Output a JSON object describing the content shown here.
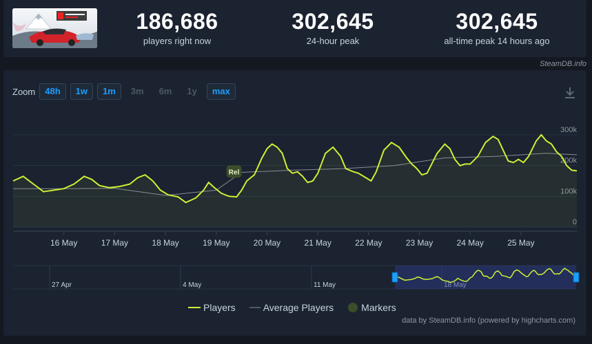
{
  "stats": {
    "current": {
      "value": "186,686",
      "label": "players right now"
    },
    "peak24": {
      "value": "302,645",
      "label": "24-hour peak"
    },
    "alltime": {
      "value": "302,645",
      "label": "all-time peak 14 hours ago"
    }
  },
  "credit": "SteamDB.info",
  "zoom": {
    "label": "Zoom",
    "buttons": [
      {
        "label": "48h",
        "active": true
      },
      {
        "label": "1w",
        "active": true
      },
      {
        "label": "1m",
        "active": true
      },
      {
        "label": "3m",
        "active": false
      },
      {
        "label": "6m",
        "active": false
      },
      {
        "label": "1y",
        "active": false
      },
      {
        "label": "max",
        "active": true
      }
    ]
  },
  "legend": {
    "players": "Players",
    "average": "Average Players",
    "markers": "Markers"
  },
  "footer": "data by SteamDB.info (powered by highcharts.com)",
  "colors": {
    "players": "#d0f034",
    "average": "#8a8f94",
    "markers": "#3b4d2a",
    "accent": "#1a9fff"
  },
  "chart_data": {
    "type": "line",
    "x_labels": [
      "16 May",
      "17 May",
      "18 May",
      "19 May",
      "20 May",
      "21 May",
      "22 May",
      "23 May",
      "24 May",
      "25 May"
    ],
    "y_ticks": [
      "0",
      "100k",
      "200k",
      "300k"
    ],
    "ylim": [
      0,
      300000
    ],
    "series": [
      {
        "name": "Players",
        "points": [
          [
            15.0,
            150000
          ],
          [
            15.2,
            165000
          ],
          [
            15.4,
            140000
          ],
          [
            15.6,
            115000
          ],
          [
            15.8,
            120000
          ],
          [
            16.0,
            125000
          ],
          [
            16.2,
            140000
          ],
          [
            16.4,
            165000
          ],
          [
            16.55,
            155000
          ],
          [
            16.7,
            135000
          ],
          [
            16.9,
            128000
          ],
          [
            17.1,
            132000
          ],
          [
            17.3,
            140000
          ],
          [
            17.45,
            160000
          ],
          [
            17.6,
            170000
          ],
          [
            17.75,
            150000
          ],
          [
            17.9,
            120000
          ],
          [
            18.05,
            105000
          ],
          [
            18.25,
            98000
          ],
          [
            18.4,
            80000
          ],
          [
            18.6,
            95000
          ],
          [
            18.75,
            120000
          ],
          [
            18.85,
            145000
          ],
          [
            18.95,
            130000
          ],
          [
            19.1,
            110000
          ],
          [
            19.25,
            100000
          ],
          [
            19.4,
            98000
          ],
          [
            19.5,
            120000
          ],
          [
            19.6,
            150000
          ],
          [
            19.75,
            170000
          ],
          [
            19.9,
            225000
          ],
          [
            20.0,
            255000
          ],
          [
            20.1,
            270000
          ],
          [
            20.2,
            260000
          ],
          [
            20.3,
            240000
          ],
          [
            20.4,
            190000
          ],
          [
            20.5,
            175000
          ],
          [
            20.6,
            180000
          ],
          [
            20.7,
            165000
          ],
          [
            20.8,
            145000
          ],
          [
            20.9,
            150000
          ],
          [
            21.0,
            175000
          ],
          [
            21.15,
            240000
          ],
          [
            21.3,
            260000
          ],
          [
            21.45,
            230000
          ],
          [
            21.55,
            190000
          ],
          [
            21.7,
            180000
          ],
          [
            21.8,
            175000
          ],
          [
            21.95,
            160000
          ],
          [
            22.05,
            150000
          ],
          [
            22.15,
            180000
          ],
          [
            22.3,
            250000
          ],
          [
            22.45,
            275000
          ],
          [
            22.6,
            260000
          ],
          [
            22.75,
            225000
          ],
          [
            22.85,
            205000
          ],
          [
            22.95,
            190000
          ],
          [
            23.05,
            170000
          ],
          [
            23.15,
            175000
          ],
          [
            23.35,
            240000
          ],
          [
            23.5,
            270000
          ],
          [
            23.6,
            255000
          ],
          [
            23.7,
            220000
          ],
          [
            23.8,
            200000
          ],
          [
            23.9,
            205000
          ],
          [
            24.0,
            205000
          ],
          [
            24.15,
            230000
          ],
          [
            24.3,
            275000
          ],
          [
            24.45,
            295000
          ],
          [
            24.55,
            285000
          ],
          [
            24.65,
            250000
          ],
          [
            24.75,
            215000
          ],
          [
            24.85,
            210000
          ],
          [
            24.95,
            220000
          ],
          [
            25.05,
            210000
          ],
          [
            25.15,
            230000
          ],
          [
            25.3,
            280000
          ],
          [
            25.4,
            300000
          ],
          [
            25.5,
            280000
          ],
          [
            25.6,
            270000
          ],
          [
            25.7,
            245000
          ],
          [
            25.8,
            230000
          ],
          [
            25.9,
            200000
          ],
          [
            26.0,
            185000
          ],
          [
            26.1,
            183000
          ]
        ]
      },
      {
        "name": "Average Players",
        "points": [
          [
            15.0,
            125000
          ],
          [
            16.0,
            125000
          ],
          [
            17.0,
            126000
          ],
          [
            18.0,
            103000
          ],
          [
            19.0,
            120000
          ],
          [
            19.5,
            178000
          ],
          [
            20.5,
            185000
          ],
          [
            21.5,
            190000
          ],
          [
            22.5,
            200000
          ],
          [
            23.5,
            225000
          ],
          [
            24.5,
            230000
          ],
          [
            25.5,
            240000
          ],
          [
            26.1,
            235000
          ]
        ]
      }
    ],
    "markers": [
      {
        "label": "Rel",
        "x": 19.35,
        "y": 118000
      }
    ],
    "navigator": {
      "labels": [
        "27 Apr",
        "4 May",
        "11 May",
        "18 May"
      ]
    }
  }
}
